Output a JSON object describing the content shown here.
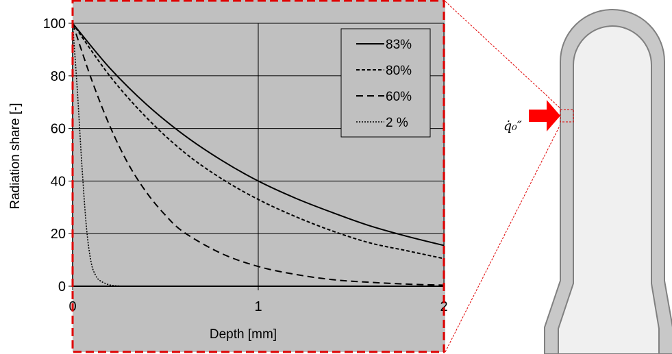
{
  "chart_data": {
    "type": "line",
    "title": "",
    "xlabel": "Depth   [mm]",
    "ylabel": "Radiation share   [-]",
    "xlim": [
      0,
      2
    ],
    "ylim": [
      0,
      100
    ],
    "xticks": [
      "0",
      "1",
      "2"
    ],
    "yticks": [
      "0",
      "20",
      "40",
      "60",
      "80",
      "100"
    ],
    "grid": true,
    "legend_position": "top-right",
    "background_color": "#c0c0c0",
    "series": [
      {
        "name": "83%",
        "style": "solid",
        "x": [
          0,
          0.2,
          0.4,
          0.6,
          0.8,
          1.0,
          1.2,
          1.4,
          1.6,
          1.8,
          2.0
        ],
        "y": [
          100,
          83.0,
          69.0,
          57.5,
          48.0,
          40.0,
          33.5,
          28.0,
          23.0,
          19.0,
          15.5
        ]
      },
      {
        "name": "80%",
        "style": "dashed-short",
        "x": [
          0,
          0.2,
          0.4,
          0.6,
          0.8,
          1.0,
          1.2,
          1.4,
          1.6,
          1.8,
          2.0
        ],
        "y": [
          100,
          80.0,
          64.0,
          51.0,
          41.0,
          33.0,
          26.5,
          21.0,
          16.5,
          13.5,
          10.5
        ]
      },
      {
        "name": "60%",
        "style": "dashed-long",
        "x": [
          0,
          0.1,
          0.2,
          0.3,
          0.4,
          0.5,
          0.6,
          0.8,
          1.0,
          1.2,
          1.4,
          1.6,
          1.8,
          2.0
        ],
        "y": [
          100,
          79.0,
          61.0,
          46.5,
          35.5,
          27.0,
          20.5,
          12.5,
          7.5,
          4.5,
          2.5,
          1.5,
          0.8,
          0.4
        ]
      },
      {
        "name": "2 %",
        "style": "dotted",
        "x": [
          0,
          0.025,
          0.05,
          0.075,
          0.1,
          0.125,
          0.15,
          0.2,
          0.25,
          0.3
        ],
        "y": [
          100,
          75.0,
          46.0,
          22.0,
          9.0,
          4.0,
          2.0,
          0.5,
          0.1,
          0
        ]
      }
    ]
  },
  "diagram": {
    "flux_label": "q̇₀″",
    "highlight_color": "#e00000",
    "wall_color": "#c8c8c8",
    "wall_stroke": "#808080",
    "interior_color": "#f0f0f0"
  }
}
